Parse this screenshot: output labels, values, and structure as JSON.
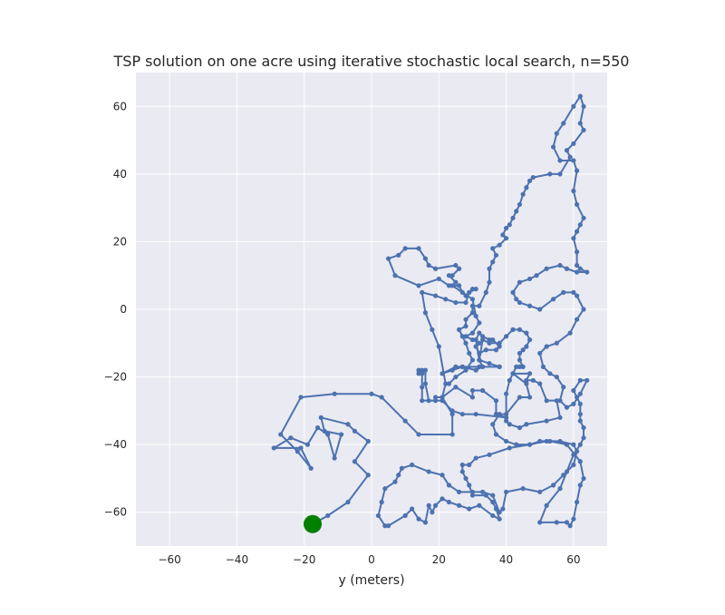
{
  "chart_data": {
    "type": "line",
    "title": "TSP solution on one acre using iterative stochastic local search, n=550",
    "xlabel": "y (meters)",
    "ylabel": "",
    "xlim": [
      -70,
      70
    ],
    "ylim": [
      -70,
      70
    ],
    "xticks": [
      -60,
      -40,
      -20,
      0,
      20,
      40,
      60
    ],
    "yticks": [
      -60,
      -40,
      -20,
      0,
      20,
      40,
      60
    ],
    "grid": true,
    "colors": {
      "route": "#4c72b0",
      "start": "#008000",
      "background": "#eaeaf2"
    },
    "start": {
      "x": -17.5,
      "y": -63.5
    },
    "series": [
      {
        "points": [
          [
            -17.5,
            -63.5
          ],
          [
            -13,
            -61
          ],
          [
            -7,
            -57
          ],
          [
            -1,
            -49
          ],
          [
            -5,
            -45
          ],
          [
            -1,
            -39
          ],
          [
            -5,
            -36
          ],
          [
            -7,
            -34
          ],
          [
            -15,
            -32
          ],
          [
            -14,
            -36
          ],
          [
            -9,
            -37
          ],
          [
            -11,
            -44
          ],
          [
            -13,
            -37
          ],
          [
            -16,
            -35
          ],
          [
            -19,
            -40
          ],
          [
            -24,
            -38
          ],
          [
            -29,
            -41
          ],
          [
            -21,
            -41
          ],
          [
            -18,
            -47
          ],
          [
            -22,
            -42
          ],
          [
            -27,
            -37
          ],
          [
            -21,
            -26
          ],
          [
            -11,
            -25
          ],
          [
            0,
            -25
          ],
          [
            3,
            -26
          ],
          [
            10,
            -33
          ],
          [
            14,
            -37
          ],
          [
            24,
            -37
          ],
          [
            24,
            -31
          ],
          [
            21,
            -26
          ],
          [
            25,
            -23
          ],
          [
            30,
            -26
          ],
          [
            30,
            -24
          ],
          [
            33,
            -24
          ],
          [
            37,
            -27
          ],
          [
            37,
            -31
          ],
          [
            40,
            -32
          ],
          [
            31,
            -31
          ],
          [
            27,
            -31
          ],
          [
            24,
            -30
          ],
          [
            21,
            -27
          ],
          [
            17,
            -27
          ],
          [
            16,
            -22
          ],
          [
            16,
            -18
          ],
          [
            15,
            -19
          ],
          [
            15,
            -18
          ],
          [
            14,
            -18
          ],
          [
            14,
            -19
          ],
          [
            15,
            -19
          ],
          [
            15,
            -23
          ],
          [
            15,
            -27
          ],
          [
            19,
            -27
          ],
          [
            19,
            -26
          ],
          [
            21,
            -26
          ],
          [
            22,
            -22
          ],
          [
            20,
            -11
          ],
          [
            18,
            -6
          ],
          [
            16,
            -1
          ],
          [
            15,
            5
          ],
          [
            19,
            4
          ],
          [
            22,
            3
          ],
          [
            25,
            2
          ],
          [
            28,
            2
          ],
          [
            29,
            5
          ],
          [
            31,
            6
          ],
          [
            30,
            6
          ],
          [
            28,
            4
          ],
          [
            27,
            5
          ],
          [
            26,
            7
          ],
          [
            23,
            7
          ],
          [
            20,
            9
          ],
          [
            14,
            7
          ],
          [
            7,
            10
          ],
          [
            5,
            15
          ],
          [
            8,
            16
          ],
          [
            10,
            18
          ],
          [
            14,
            18
          ],
          [
            16,
            15
          ],
          [
            17,
            13
          ],
          [
            19,
            12
          ],
          [
            25,
            13
          ],
          [
            26,
            12
          ],
          [
            24,
            10
          ],
          [
            23,
            10
          ],
          [
            25,
            8
          ],
          [
            24,
            7
          ],
          [
            30,
            3
          ],
          [
            31,
            -2
          ],
          [
            32,
            -4
          ],
          [
            30,
            -7
          ],
          [
            28,
            -8
          ],
          [
            30,
            -9
          ],
          [
            32,
            -10
          ],
          [
            31,
            -11
          ],
          [
            32,
            -13
          ],
          [
            34,
            -12
          ],
          [
            37,
            -12
          ],
          [
            38,
            -11
          ],
          [
            36,
            -9
          ],
          [
            35,
            -9
          ],
          [
            33,
            -8
          ],
          [
            32,
            -7
          ],
          [
            31,
            -9
          ],
          [
            32,
            -15
          ],
          [
            33,
            -17
          ],
          [
            31,
            -18
          ],
          [
            27,
            -17
          ],
          [
            25,
            -17
          ],
          [
            21,
            -19
          ],
          [
            24,
            -18
          ],
          [
            27,
            -17
          ],
          [
            32,
            -17
          ],
          [
            38,
            -17
          ],
          [
            38,
            -17
          ],
          [
            35,
            -16
          ],
          [
            32,
            -15
          ],
          [
            33,
            -9
          ],
          [
            35,
            -10
          ],
          [
            38,
            -10
          ],
          [
            40,
            -8
          ],
          [
            42,
            -6
          ],
          [
            44,
            -6
          ],
          [
            46,
            -7
          ],
          [
            47,
            -9
          ],
          [
            46,
            -11
          ],
          [
            45,
            -12
          ],
          [
            44,
            -13
          ],
          [
            44,
            -15
          ],
          [
            45,
            -17
          ],
          [
            44,
            -17
          ],
          [
            43,
            -17
          ],
          [
            42,
            -19
          ],
          [
            41,
            -21
          ],
          [
            40,
            -25
          ],
          [
            40,
            -33
          ],
          [
            41,
            -34
          ],
          [
            44,
            -35
          ],
          [
            46,
            -34
          ],
          [
            52,
            -33
          ],
          [
            56,
            -32
          ],
          [
            55,
            -27
          ],
          [
            52,
            -27
          ],
          [
            50,
            -22
          ],
          [
            48,
            -21
          ],
          [
            46,
            -21
          ],
          [
            47,
            -19
          ],
          [
            42,
            -19
          ],
          [
            46,
            -22
          ],
          [
            47,
            -26
          ],
          [
            44,
            -26
          ],
          [
            40,
            -31
          ],
          [
            38,
            -31
          ],
          [
            36,
            -34
          ],
          [
            37,
            -37
          ],
          [
            40,
            -39
          ],
          [
            43,
            -40
          ],
          [
            47,
            -40
          ],
          [
            52,
            -39
          ],
          [
            56,
            -39
          ],
          [
            60,
            -40
          ],
          [
            61,
            -42
          ],
          [
            60,
            -46
          ],
          [
            57,
            -49
          ],
          [
            54,
            -52
          ],
          [
            50,
            -54
          ],
          [
            45,
            -53
          ],
          [
            40,
            -54
          ],
          [
            39,
            -59
          ],
          [
            38,
            -60
          ],
          [
            36,
            -55
          ],
          [
            33,
            -54
          ],
          [
            30,
            -54
          ],
          [
            26,
            -54
          ],
          [
            23,
            -52
          ],
          [
            21,
            -49
          ],
          [
            17,
            -48
          ],
          [
            12,
            -46
          ],
          [
            9,
            -47
          ],
          [
            8,
            -49
          ],
          [
            7,
            -51
          ],
          [
            4,
            -53
          ],
          [
            3,
            -57
          ],
          [
            2,
            -61
          ],
          [
            4,
            -64
          ],
          [
            5,
            -64
          ],
          [
            10,
            -61
          ],
          [
            12,
            -59
          ],
          [
            14,
            -62
          ],
          [
            16,
            -63
          ],
          [
            17,
            -58
          ],
          [
            18,
            -60
          ],
          [
            19,
            -58
          ],
          [
            21,
            -56
          ],
          [
            23,
            -57
          ],
          [
            26,
            -58
          ],
          [
            29,
            -59
          ],
          [
            32,
            -58
          ],
          [
            36,
            -61
          ],
          [
            38,
            -62
          ],
          [
            37,
            -59
          ],
          [
            36,
            -57
          ],
          [
            34,
            -55
          ],
          [
            30,
            -55
          ],
          [
            29,
            -52
          ],
          [
            28,
            -50
          ],
          [
            27,
            -48
          ],
          [
            27,
            -46
          ],
          [
            29,
            -46
          ],
          [
            31,
            -44
          ],
          [
            35,
            -43
          ],
          [
            41,
            -41
          ],
          [
            47,
            -40
          ],
          [
            50,
            -39
          ],
          [
            53,
            -39
          ],
          [
            58,
            -40
          ],
          [
            62,
            -45
          ],
          [
            63,
            -50
          ],
          [
            62,
            -52
          ],
          [
            61,
            -57
          ],
          [
            60,
            -62
          ],
          [
            59,
            -64
          ],
          [
            58,
            -63
          ],
          [
            55,
            -63
          ],
          [
            50,
            -63
          ],
          [
            52,
            -58
          ],
          [
            56,
            -53
          ],
          [
            58,
            -48
          ],
          [
            60,
            -43
          ],
          [
            62,
            -40
          ],
          [
            63,
            -38
          ],
          [
            63,
            -35
          ],
          [
            62,
            -33
          ],
          [
            62,
            -31
          ],
          [
            62,
            -28
          ],
          [
            61,
            -26
          ],
          [
            60,
            -24
          ],
          [
            62,
            -21
          ],
          [
            64,
            -21
          ],
          [
            62,
            -25
          ],
          [
            60,
            -28
          ],
          [
            58,
            -29
          ],
          [
            56,
            -27
          ],
          [
            57,
            -23
          ],
          [
            55,
            -20
          ],
          [
            53,
            -19
          ],
          [
            51,
            -17
          ],
          [
            50,
            -13
          ],
          [
            52,
            -11
          ],
          [
            55,
            -10
          ],
          [
            59,
            -7
          ],
          [
            61,
            -3
          ],
          [
            63,
            0
          ],
          [
            61,
            4
          ],
          [
            60,
            5
          ],
          [
            57,
            5
          ],
          [
            54,
            3
          ],
          [
            50,
            0
          ],
          [
            47,
            1
          ],
          [
            44,
            2
          ],
          [
            43,
            3
          ],
          [
            42,
            5
          ],
          [
            44,
            8
          ],
          [
            47,
            9
          ],
          [
            49,
            10
          ],
          [
            52,
            12
          ],
          [
            56,
            13
          ],
          [
            58,
            12
          ],
          [
            61,
            11
          ],
          [
            64,
            11
          ],
          [
            62,
            12
          ],
          [
            61,
            13
          ],
          [
            61,
            17
          ],
          [
            60,
            21
          ],
          [
            61,
            23
          ],
          [
            62,
            25
          ],
          [
            63,
            27
          ],
          [
            61,
            31
          ],
          [
            60,
            35
          ],
          [
            61,
            41
          ],
          [
            60,
            44
          ],
          [
            56,
            44
          ],
          [
            54,
            48
          ],
          [
            55,
            52
          ],
          [
            57,
            55
          ],
          [
            60,
            60
          ],
          [
            62,
            63
          ],
          [
            63,
            60
          ],
          [
            62,
            55
          ],
          [
            63,
            53
          ],
          [
            60,
            49
          ],
          [
            58,
            47
          ],
          [
            59,
            45
          ],
          [
            56,
            40
          ],
          [
            53,
            40
          ],
          [
            48,
            39
          ],
          [
            47,
            38
          ],
          [
            46,
            36
          ],
          [
            45,
            34
          ],
          [
            44,
            31
          ],
          [
            43,
            29
          ],
          [
            42,
            27
          ],
          [
            41,
            25
          ],
          [
            40,
            24
          ],
          [
            39,
            22
          ],
          [
            40,
            21
          ],
          [
            38,
            19
          ],
          [
            36,
            18
          ],
          [
            37,
            16
          ],
          [
            36,
            14
          ],
          [
            35,
            12
          ],
          [
            35,
            8
          ],
          [
            34,
            5
          ],
          [
            32,
            1
          ],
          [
            30,
            1
          ],
          [
            30,
            -1
          ],
          [
            28,
            -3
          ],
          [
            28,
            -5
          ],
          [
            26,
            -6
          ],
          [
            27,
            -8
          ],
          [
            28,
            -10
          ],
          [
            29,
            -13
          ],
          [
            30,
            -15
          ],
          [
            28,
            -18
          ],
          [
            25,
            -20
          ],
          [
            23,
            -22
          ]
        ]
      }
    ]
  }
}
